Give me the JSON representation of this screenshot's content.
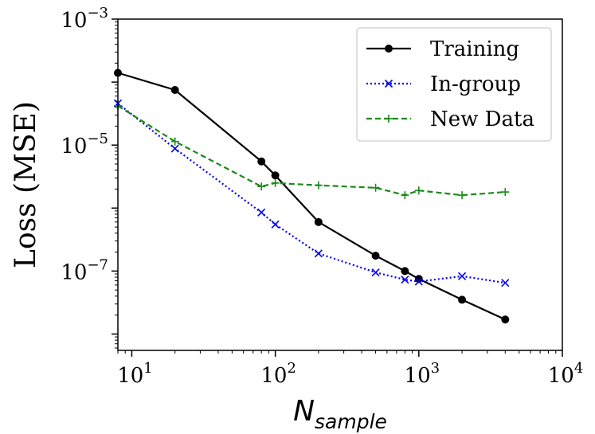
{
  "chart_data": {
    "type": "line",
    "title": "",
    "xlabel": {
      "base": "N",
      "subscript": "sample"
    },
    "ylabel": "Loss (MSE)",
    "xscale": "log",
    "yscale": "log",
    "xlim": [
      8,
      10000
    ],
    "ylim": [
      5.5e-09,
      0.001
    ],
    "x_ticks": [
      {
        "value": 10,
        "base": "10",
        "exp": "1"
      },
      {
        "value": 100,
        "base": "10",
        "exp": "2"
      },
      {
        "value": 1000,
        "base": "10",
        "exp": "3"
      },
      {
        "value": 10000,
        "base": "10",
        "exp": "4"
      }
    ],
    "y_ticks": [
      {
        "value": 1e-07,
        "base": "10",
        "exp": "−7"
      },
      {
        "value": 1e-05,
        "base": "10",
        "exp": "−5"
      },
      {
        "value": 0.001,
        "base": "10",
        "exp": "−3"
      }
    ],
    "legend_position": "top-right",
    "series": [
      {
        "name": "Training",
        "color": "#000000",
        "linestyle": "solid",
        "marker": "circle",
        "points": [
          [
            8,
            0.00014
          ],
          [
            20,
            7.5e-05
          ],
          [
            80,
            5.5e-06
          ],
          [
            100,
            3.3e-06
          ],
          [
            200,
            6e-07
          ],
          [
            500,
            1.75e-07
          ],
          [
            800,
            1e-07
          ],
          [
            1000,
            7.5e-08
          ],
          [
            2000,
            3.5e-08
          ],
          [
            4000,
            1.7e-08
          ]
        ]
      },
      {
        "name": "In-group",
        "color": "#0000ee",
        "linestyle": "dotted",
        "marker": "x",
        "points": [
          [
            8,
            4.6e-05
          ],
          [
            20,
            8.8e-06
          ],
          [
            80,
            8.5e-07
          ],
          [
            100,
            5.5e-07
          ],
          [
            200,
            1.9e-07
          ],
          [
            500,
            9.5e-08
          ],
          [
            800,
            7.3e-08
          ],
          [
            1000,
            6.8e-08
          ],
          [
            2000,
            8.3e-08
          ],
          [
            4000,
            6.5e-08
          ]
        ]
      },
      {
        "name": "New Data",
        "color": "#1a8a1a",
        "linestyle": "dashed",
        "marker": "plus",
        "points": [
          [
            8,
            4.2e-05
          ],
          [
            20,
            1.14e-05
          ],
          [
            80,
            2.2e-06
          ],
          [
            100,
            2.5e-06
          ],
          [
            200,
            2.3e-06
          ],
          [
            500,
            2.1e-06
          ],
          [
            800,
            1.6e-06
          ],
          [
            1000,
            1.9e-06
          ],
          [
            2000,
            1.6e-06
          ],
          [
            4000,
            1.8e-06
          ]
        ]
      }
    ]
  }
}
